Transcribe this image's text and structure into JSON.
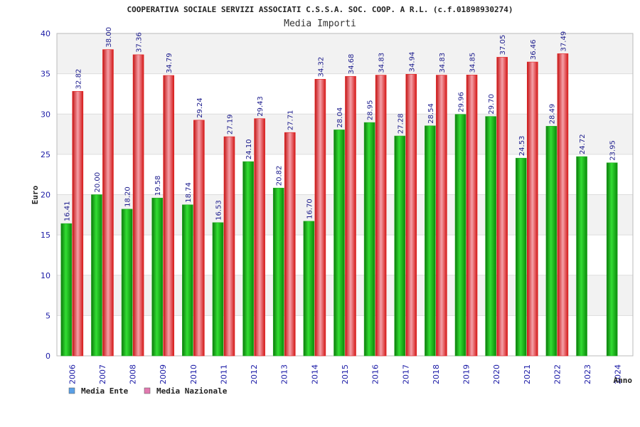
{
  "chart_data": {
    "type": "bar",
    "title": "COOPERATIVA SOCIALE SERVIZI ASSOCIATI C.S.S.A. SOC. COOP. A R.L. (c.f.01898930274)",
    "subtitle": "Media Importi",
    "xlabel": "Anno",
    "ylabel": "Euro",
    "ylim": [
      0,
      40
    ],
    "yticks": [
      "0",
      "5",
      "10",
      "15",
      "20",
      "25",
      "30",
      "35",
      "40"
    ],
    "categories": [
      "2006",
      "2007",
      "2008",
      "2009",
      "2010",
      "2011",
      "2012",
      "2013",
      "2014",
      "2015",
      "2016",
      "2017",
      "2018",
      "2019",
      "2020",
      "2021",
      "2022",
      "2023",
      "2024"
    ],
    "series": [
      {
        "name": "Media Ente",
        "color": "#22aa22",
        "legend_color": "#5aa0e6",
        "values": [
          16.41,
          20.0,
          18.2,
          19.58,
          18.74,
          16.53,
          24.1,
          20.82,
          16.7,
          28.04,
          28.95,
          27.28,
          28.54,
          29.96,
          29.7,
          24.53,
          28.49,
          24.72,
          23.95
        ],
        "labels": [
          "16.41",
          "20.00",
          "18.20",
          "19.58",
          "18.74",
          "16.53",
          "24.10",
          "20.82",
          "16.70",
          "28.04",
          "28.95",
          "27.28",
          "28.54",
          "29.96",
          "29.70",
          "24.53",
          "28.49",
          "24.72",
          "23.95"
        ]
      },
      {
        "name": "Media Nazionale",
        "color": "#e52222",
        "legend_color": "#e27ab0",
        "values": [
          32.82,
          38.0,
          37.36,
          34.79,
          29.24,
          27.19,
          29.43,
          27.71,
          34.32,
          34.68,
          34.83,
          34.94,
          34.83,
          34.85,
          37.05,
          36.46,
          37.49,
          null,
          null
        ],
        "labels": [
          "32.82",
          "38.00",
          "37.36",
          "34.79",
          "29.24",
          "27.19",
          "29.43",
          "27.71",
          "34.32",
          "34.68",
          "34.83",
          "34.94",
          "34.83",
          "34.85",
          "37.05",
          "36.46",
          "37.49",
          "",
          ""
        ]
      }
    ],
    "grid": true,
    "legend_position": "bottom-left"
  }
}
